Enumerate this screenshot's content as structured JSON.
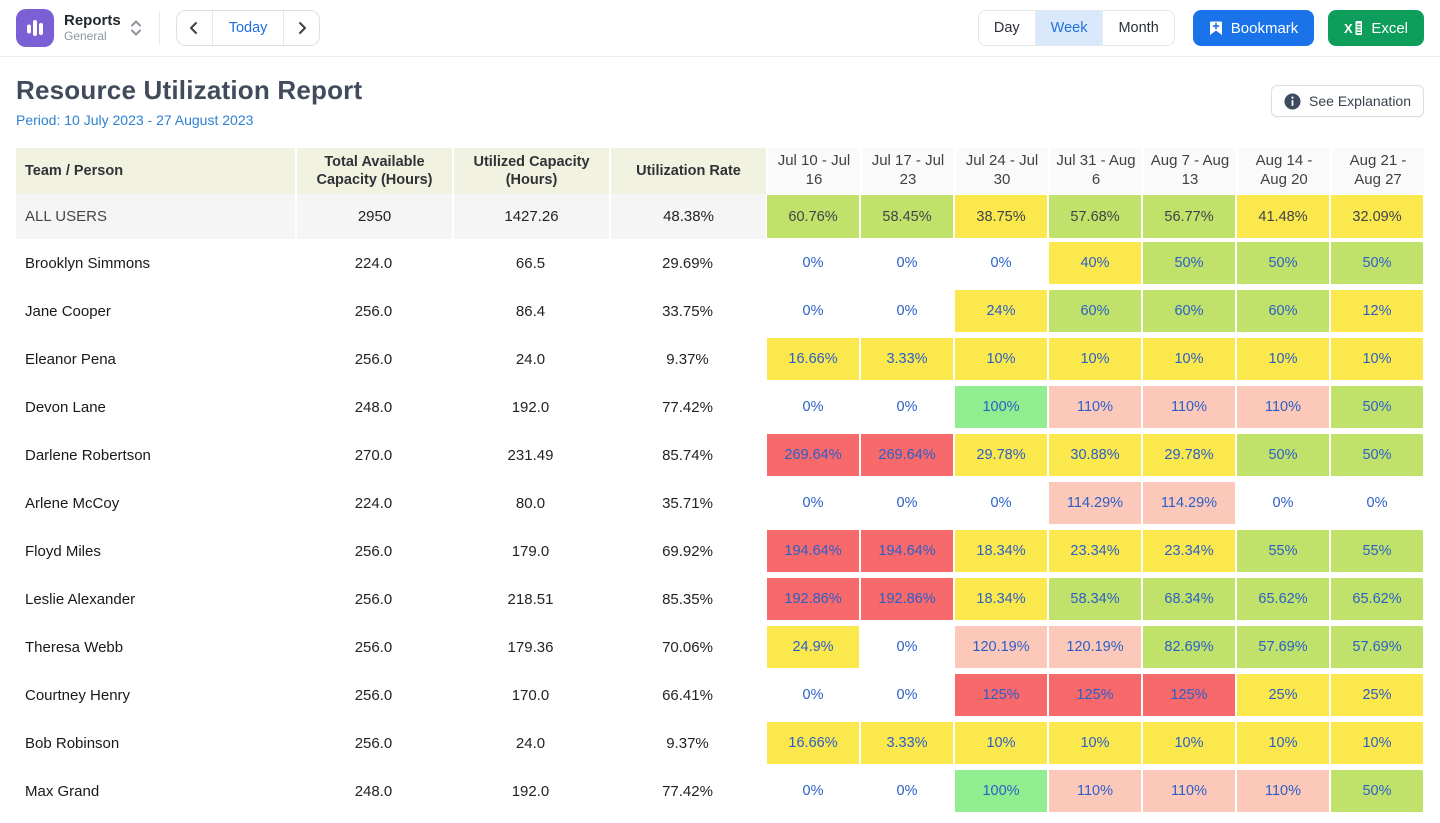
{
  "topbar": {
    "app": {
      "title": "Reports",
      "subtitle": "General"
    },
    "nav": {
      "today_label": "Today"
    },
    "view_toggle": {
      "options": [
        "Day",
        "Week",
        "Month"
      ],
      "selected": "Week"
    },
    "bookmark_label": "Bookmark",
    "excel_label": "Excel"
  },
  "header": {
    "title": "Resource Utilization Report",
    "period": "Period: 10 July 2023 - 27 August 2023",
    "see_explanation_label": "See Explanation"
  },
  "colors": {
    "green": "#c1e26a",
    "bright_green": "#90ee90",
    "yellow": "#fae84d",
    "pink": "#fcc8ba",
    "red": "#f8696b",
    "none": "transparent",
    "link_blue": "#2b5fc7",
    "accent_blue": "#1a73e8",
    "excel_green": "#0e9e5c",
    "period_blue": "#2e81d2",
    "header_beige": "#f2f2e1"
  },
  "table": {
    "columns": [
      "Team / Person",
      "Total Available Capacity (Hours)",
      "Utilized Capacity (Hours)",
      "Utilization Rate",
      "Jul 10 - Jul 16",
      "Jul 17 - Jul 23",
      "Jul 24 - Jul 30",
      "Jul 31 - Aug 6",
      "Aug 7 - Aug 13",
      "Aug 14 - Aug 20",
      "Aug 21 - Aug 27"
    ],
    "summary": {
      "name": "ALL USERS",
      "total_available": "2950",
      "utilized": "1427.26",
      "rate": "48.38%",
      "weeks": [
        {
          "value": "60.76%",
          "color": "green"
        },
        {
          "value": "58.45%",
          "color": "green"
        },
        {
          "value": "38.75%",
          "color": "yellow"
        },
        {
          "value": "57.68%",
          "color": "green"
        },
        {
          "value": "56.77%",
          "color": "green"
        },
        {
          "value": "41.48%",
          "color": "yellow"
        },
        {
          "value": "32.09%",
          "color": "yellow"
        }
      ]
    },
    "rows": [
      {
        "name": "Brooklyn Simmons",
        "total_available": "224.0",
        "utilized": "66.5",
        "rate": "29.69%",
        "weeks": [
          {
            "value": "0%",
            "color": "none"
          },
          {
            "value": "0%",
            "color": "none"
          },
          {
            "value": "0%",
            "color": "none"
          },
          {
            "value": "40%",
            "color": "yellow"
          },
          {
            "value": "50%",
            "color": "green"
          },
          {
            "value": "50%",
            "color": "green"
          },
          {
            "value": "50%",
            "color": "green"
          }
        ]
      },
      {
        "name": "Jane Cooper",
        "total_available": "256.0",
        "utilized": "86.4",
        "rate": "33.75%",
        "weeks": [
          {
            "value": "0%",
            "color": "none"
          },
          {
            "value": "0%",
            "color": "none"
          },
          {
            "value": "24%",
            "color": "yellow"
          },
          {
            "value": "60%",
            "color": "green"
          },
          {
            "value": "60%",
            "color": "green"
          },
          {
            "value": "60%",
            "color": "green"
          },
          {
            "value": "12%",
            "color": "yellow"
          }
        ]
      },
      {
        "name": "Eleanor Pena",
        "total_available": "256.0",
        "utilized": "24.0",
        "rate": "9.37%",
        "weeks": [
          {
            "value": "16.66%",
            "color": "yellow"
          },
          {
            "value": "3.33%",
            "color": "yellow"
          },
          {
            "value": "10%",
            "color": "yellow"
          },
          {
            "value": "10%",
            "color": "yellow"
          },
          {
            "value": "10%",
            "color": "yellow"
          },
          {
            "value": "10%",
            "color": "yellow"
          },
          {
            "value": "10%",
            "color": "yellow"
          }
        ]
      },
      {
        "name": "Devon Lane",
        "total_available": "248.0",
        "utilized": "192.0",
        "rate": "77.42%",
        "weeks": [
          {
            "value": "0%",
            "color": "none"
          },
          {
            "value": "0%",
            "color": "none"
          },
          {
            "value": "100%",
            "color": "bright_green"
          },
          {
            "value": "110%",
            "color": "pink"
          },
          {
            "value": "110%",
            "color": "pink"
          },
          {
            "value": "110%",
            "color": "pink"
          },
          {
            "value": "50%",
            "color": "green"
          }
        ]
      },
      {
        "name": "Darlene Robertson",
        "total_available": "270.0",
        "utilized": "231.49",
        "rate": "85.74%",
        "weeks": [
          {
            "value": "269.64%",
            "color": "red"
          },
          {
            "value": "269.64%",
            "color": "red"
          },
          {
            "value": "29.78%",
            "color": "yellow"
          },
          {
            "value": "30.88%",
            "color": "yellow"
          },
          {
            "value": "29.78%",
            "color": "yellow"
          },
          {
            "value": "50%",
            "color": "green"
          },
          {
            "value": "50%",
            "color": "green"
          }
        ]
      },
      {
        "name": "Arlene McCoy",
        "total_available": "224.0",
        "utilized": "80.0",
        "rate": "35.71%",
        "weeks": [
          {
            "value": "0%",
            "color": "none"
          },
          {
            "value": "0%",
            "color": "none"
          },
          {
            "value": "0%",
            "color": "none"
          },
          {
            "value": "114.29%",
            "color": "pink"
          },
          {
            "value": "114.29%",
            "color": "pink"
          },
          {
            "value": "0%",
            "color": "none"
          },
          {
            "value": "0%",
            "color": "none"
          }
        ]
      },
      {
        "name": "Floyd Miles",
        "total_available": "256.0",
        "utilized": "179.0",
        "rate": "69.92%",
        "weeks": [
          {
            "value": "194.64%",
            "color": "red"
          },
          {
            "value": "194.64%",
            "color": "red"
          },
          {
            "value": "18.34%",
            "color": "yellow"
          },
          {
            "value": "23.34%",
            "color": "yellow"
          },
          {
            "value": "23.34%",
            "color": "yellow"
          },
          {
            "value": "55%",
            "color": "green"
          },
          {
            "value": "55%",
            "color": "green"
          }
        ]
      },
      {
        "name": "Leslie Alexander",
        "total_available": "256.0",
        "utilized": "218.51",
        "rate": "85.35%",
        "weeks": [
          {
            "value": "192.86%",
            "color": "red"
          },
          {
            "value": "192.86%",
            "color": "red"
          },
          {
            "value": "18.34%",
            "color": "yellow"
          },
          {
            "value": "58.34%",
            "color": "green"
          },
          {
            "value": "68.34%",
            "color": "green"
          },
          {
            "value": "65.62%",
            "color": "green"
          },
          {
            "value": "65.62%",
            "color": "green"
          }
        ]
      },
      {
        "name": "Theresa Webb",
        "total_available": "256.0",
        "utilized": "179.36",
        "rate": "70.06%",
        "weeks": [
          {
            "value": "24.9%",
            "color": "yellow"
          },
          {
            "value": "0%",
            "color": "none"
          },
          {
            "value": "120.19%",
            "color": "pink"
          },
          {
            "value": "120.19%",
            "color": "pink"
          },
          {
            "value": "82.69%",
            "color": "green"
          },
          {
            "value": "57.69%",
            "color": "green"
          },
          {
            "value": "57.69%",
            "color": "green"
          }
        ]
      },
      {
        "name": "Courtney Henry",
        "total_available": "256.0",
        "utilized": "170.0",
        "rate": "66.41%",
        "weeks": [
          {
            "value": "0%",
            "color": "none"
          },
          {
            "value": "0%",
            "color": "none"
          },
          {
            "value": "125%",
            "color": "red"
          },
          {
            "value": "125%",
            "color": "red"
          },
          {
            "value": "125%",
            "color": "red"
          },
          {
            "value": "25%",
            "color": "yellow"
          },
          {
            "value": "25%",
            "color": "yellow"
          }
        ]
      },
      {
        "name": "Bob Robinson",
        "total_available": "256.0",
        "utilized": "24.0",
        "rate": "9.37%",
        "weeks": [
          {
            "value": "16.66%",
            "color": "yellow"
          },
          {
            "value": "3.33%",
            "color": "yellow"
          },
          {
            "value": "10%",
            "color": "yellow"
          },
          {
            "value": "10%",
            "color": "yellow"
          },
          {
            "value": "10%",
            "color": "yellow"
          },
          {
            "value": "10%",
            "color": "yellow"
          },
          {
            "value": "10%",
            "color": "yellow"
          }
        ]
      },
      {
        "name": "Max Grand",
        "total_available": "248.0",
        "utilized": "192.0",
        "rate": "77.42%",
        "weeks": [
          {
            "value": "0%",
            "color": "none"
          },
          {
            "value": "0%",
            "color": "none"
          },
          {
            "value": "100%",
            "color": "bright_green"
          },
          {
            "value": "110%",
            "color": "pink"
          },
          {
            "value": "110%",
            "color": "pink"
          },
          {
            "value": "110%",
            "color": "pink"
          },
          {
            "value": "50%",
            "color": "green"
          }
        ]
      }
    ]
  }
}
